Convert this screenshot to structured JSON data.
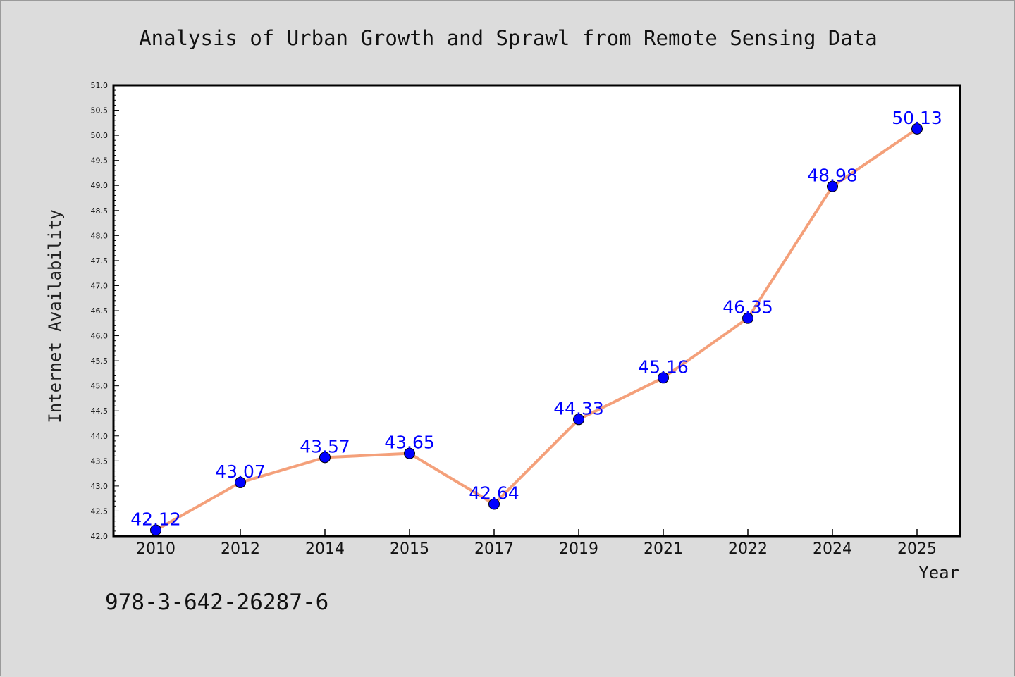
{
  "chart_data": {
    "type": "line",
    "title": "Analysis of Urban Growth and Sprawl from Remote Sensing Data",
    "xlabel": "Year",
    "ylabel": "Internet Availability",
    "categories": [
      "2010",
      "2012",
      "2014",
      "2015",
      "2017",
      "2019",
      "2021",
      "2022",
      "2024",
      "2025"
    ],
    "series": [
      {
        "values": [
          42.12,
          43.07,
          43.57,
          43.65,
          42.64,
          44.33,
          45.16,
          46.35,
          48.98,
          50.13
        ],
        "labels": [
          "42.12",
          "43.07",
          "43.57",
          "43.65",
          "42.64",
          "44.33",
          "45.16",
          "46.35",
          "48.98",
          "50.13"
        ]
      }
    ],
    "ylim": [
      42.0,
      51.0
    ],
    "yticks": [
      "42.0",
      "42.5",
      "43.0",
      "43.5",
      "44.0",
      "44.5",
      "45.0",
      "45.5",
      "46.0",
      "46.5",
      "47.0",
      "47.5",
      "48.0",
      "48.5",
      "49.0",
      "49.5",
      "50.0",
      "50.5",
      "51.0"
    ],
    "grid": false,
    "colors": {
      "line": "#f4a07a",
      "marker": "#0000ff",
      "labels": "#0000ff",
      "background": "#dcdcdc",
      "plot_background": "#ffffff"
    }
  },
  "footer": {
    "isbn": "978-3-642-26287-6"
  }
}
